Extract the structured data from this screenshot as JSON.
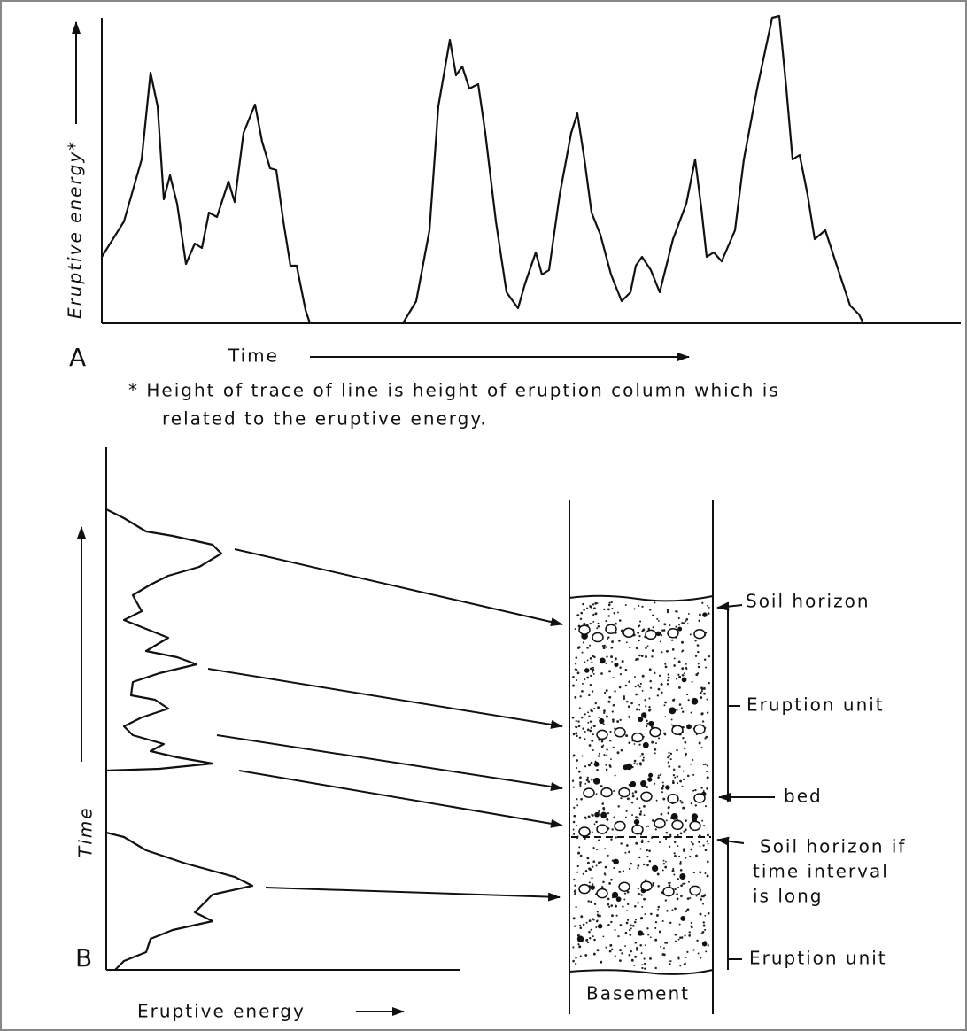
{
  "panel_a": {
    "label": "A",
    "y_axis_label": "Eruptive energy*",
    "x_axis_label": "Time",
    "footnote": [
      "* Height of trace of line is height of eruption column which is",
      "related to the eruptive energy."
    ]
  },
  "panel_b": {
    "label": "B",
    "y_axis_label": "Time",
    "x_axis_label": "Eruptive energy",
    "column_labels": {
      "soil_horizon": "Soil horizon",
      "eruption_unit_upper": "Eruption unit",
      "bed": "bed",
      "soil_horizon_if_long": [
        "Soil horizon if",
        "time interval",
        "is long"
      ],
      "eruption_unit_lower": "Eruption unit",
      "basement": "Basement"
    }
  }
}
